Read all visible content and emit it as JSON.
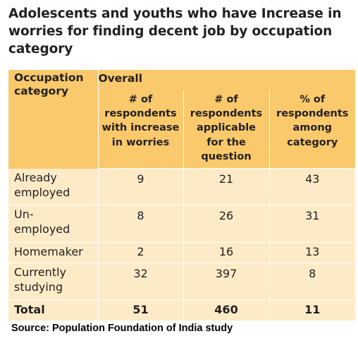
{
  "title_lines": [
    "Adolescents and youths who have Increase in",
    "worries for finding decent job by occupation",
    "category"
  ],
  "chart_data": {
    "type": "table",
    "title": "Adolescents and youths who have Increase in worries for finding decent job by occupation category",
    "header": {
      "category_label": "Occupation category",
      "group_label": "Overall",
      "columns": [
        "# of respondents with increase in worries",
        "# of respondents applicable for the question",
        "% of respondents among category"
      ]
    },
    "rows": [
      {
        "category": "Already employed",
        "values": [
          "9",
          "21",
          "43"
        ]
      },
      {
        "category": "Un-employed",
        "values": [
          "8",
          "26",
          "31"
        ]
      },
      {
        "category": "Homemaker",
        "values": [
          "2",
          "16",
          "13"
        ]
      },
      {
        "category": "Currently studying",
        "values": [
          "32",
          "397",
          "8"
        ]
      }
    ],
    "total": {
      "category": "Total",
      "values": [
        "51",
        "460",
        "11"
      ]
    }
  },
  "display": {
    "category_head": [
      "Occupation",
      "category"
    ],
    "col_heads": [
      [
        "# of",
        "respondents",
        "with increase",
        "in worries"
      ],
      [
        "# of",
        "respondents",
        "applicable",
        "for the",
        "question"
      ],
      [
        "% of",
        "respondents",
        "among",
        "category"
      ]
    ],
    "row_labels": [
      [
        "Already",
        "employed"
      ],
      [
        "Un-",
        "employed"
      ],
      [
        "Homemaker"
      ],
      [
        "Currently",
        "studying"
      ]
    ]
  },
  "source": "Source: Population Foundation of India study",
  "colors": {
    "header_bg": "#f9c96b",
    "body_bg": "#fdebc8",
    "text": "#231f20"
  }
}
